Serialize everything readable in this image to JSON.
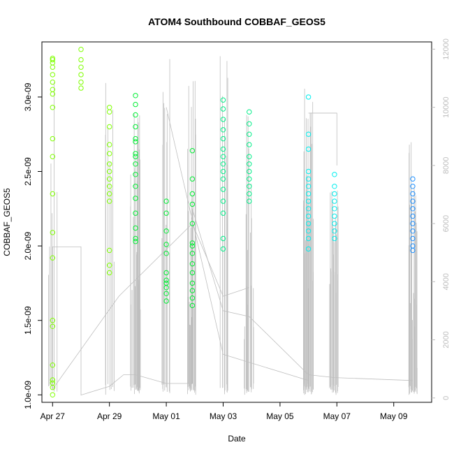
{
  "chart_data": {
    "type": "scatter",
    "title": "ATOM4 Southbound COBBAF_GEOS5",
    "xlabel": "Date",
    "ylabel": "COBBAF_GEOS5",
    "x_type": "date",
    "xlim": [
      "2017-04-26T15:00",
      "2017-05-10T08:00"
    ],
    "x_ticks": [
      {
        "label": "Apr 27",
        "date": "2017-04-27"
      },
      {
        "label": "Apr 29",
        "date": "2017-04-29"
      },
      {
        "label": "May 01",
        "date": "2017-05-01"
      },
      {
        "label": "May 03",
        "date": "2017-05-03"
      },
      {
        "label": "May 05",
        "date": "2017-05-05"
      },
      {
        "label": "May 07",
        "date": "2017-05-07"
      },
      {
        "label": "May 09",
        "date": "2017-05-09"
      }
    ],
    "ylim": [
      9.5e-10,
      3.37e-09
    ],
    "y_ticks": [
      {
        "label": "1.0e-09",
        "value": 1e-09
      },
      {
        "label": "1.5e-09",
        "value": 1.5e-09
      },
      {
        "label": "2.0e-09",
        "value": 2e-09
      },
      {
        "label": "2.5e-09",
        "value": 2.5e-09
      },
      {
        "label": "3.0e-09",
        "value": 3e-09
      }
    ],
    "y2lim": [
      -150,
      12250
    ],
    "y2_ticks": [
      "0",
      "2000",
      "4000",
      "6000",
      "8000",
      "10000",
      "12000"
    ],
    "grid": false,
    "legend": "none",
    "marker": "open circle",
    "colors": {
      "altitude_line": "#bebebe",
      "axis": "#000000",
      "right_axis": "#bdbdbd"
    },
    "series": [
      {
        "color": "#7fff00",
        "points": [
          [
            "2017-04-27T00:00",
            3.26e-09
          ],
          [
            "2017-04-27T00:00",
            3.23e-09
          ],
          [
            "2017-04-27T00:00",
            3.2e-09
          ],
          [
            "2017-04-27T00:00",
            3.15e-09
          ],
          [
            "2017-04-27T00:00",
            3.1e-09
          ],
          [
            "2017-04-27T00:00",
            3.05e-09
          ],
          [
            "2017-04-27T00:00",
            3.02e-09
          ],
          [
            "2017-04-27T00:00",
            2.93e-09
          ],
          [
            "2017-04-27T00:00",
            2.72e-09
          ],
          [
            "2017-04-27T00:00",
            2.6e-09
          ],
          [
            "2017-04-27T00:00",
            2.35e-09
          ],
          [
            "2017-04-27T00:00",
            2.09e-09
          ],
          [
            "2017-04-27T00:00",
            1.92e-09
          ],
          [
            "2017-04-27T00:00",
            1.5e-09
          ],
          [
            "2017-04-27T00:00",
            1.46e-09
          ],
          [
            "2017-04-27T00:00",
            1.2e-09
          ],
          [
            "2017-04-27T00:00",
            1.1e-09
          ],
          [
            "2017-04-27T00:00",
            1.05e-09
          ],
          [
            "2017-04-27T00:00",
            1e-09
          ],
          [
            "2017-04-27T00:00",
            1.08e-09
          ],
          [
            "2017-04-27T00:00",
            3.25e-09
          ],
          [
            "2017-04-28T00:00",
            3.32e-09
          ],
          [
            "2017-04-28T00:00",
            3.25e-09
          ],
          [
            "2017-04-28T00:00",
            3.2e-09
          ],
          [
            "2017-04-28T00:00",
            3.15e-09
          ],
          [
            "2017-04-28T00:00",
            3.1e-09
          ],
          [
            "2017-04-28T00:00",
            3.06e-09
          ],
          [
            "2017-04-29T00:00",
            2.93e-09
          ],
          [
            "2017-04-29T00:00",
            2.9e-09
          ],
          [
            "2017-04-29T00:00",
            2.8e-09
          ],
          [
            "2017-04-29T00:00",
            2.68e-09
          ],
          [
            "2017-04-29T00:00",
            2.62e-09
          ],
          [
            "2017-04-29T00:00",
            2.55e-09
          ],
          [
            "2017-04-29T00:00",
            2.5e-09
          ],
          [
            "2017-04-29T00:00",
            2.45e-09
          ],
          [
            "2017-04-29T00:00",
            2.4e-09
          ],
          [
            "2017-04-29T00:00",
            2.35e-09
          ],
          [
            "2017-04-29T00:00",
            2.3e-09
          ],
          [
            "2017-04-29T00:00",
            1.97e-09
          ],
          [
            "2017-04-29T00:00",
            1.87e-09
          ],
          [
            "2017-04-29T00:00",
            1.82e-09
          ]
        ]
      },
      {
        "color": "#00ee33",
        "points": [
          [
            "2017-04-29T22:00",
            3.01e-09
          ],
          [
            "2017-04-29T22:00",
            2.95e-09
          ],
          [
            "2017-04-29T22:00",
            2.88e-09
          ],
          [
            "2017-04-29T22:00",
            2.8e-09
          ],
          [
            "2017-04-29T22:00",
            2.72e-09
          ],
          [
            "2017-04-29T22:00",
            2.62e-09
          ],
          [
            "2017-04-29T22:00",
            2.55e-09
          ],
          [
            "2017-04-29T22:00",
            2.48e-09
          ],
          [
            "2017-04-29T22:00",
            2.4e-09
          ],
          [
            "2017-04-29T22:00",
            2.32e-09
          ],
          [
            "2017-04-29T22:00",
            2.22e-09
          ],
          [
            "2017-04-29T22:00",
            2.12e-09
          ],
          [
            "2017-04-29T22:00",
            2.05e-09
          ],
          [
            "2017-04-29T22:00",
            2.03e-09
          ],
          [
            "2017-04-29T22:00",
            2.6e-09
          ],
          [
            "2017-04-29T22:00",
            2.7e-09
          ],
          [
            "2017-05-01T00:00",
            2.3e-09
          ],
          [
            "2017-05-01T00:00",
            2.22e-09
          ],
          [
            "2017-05-01T00:00",
            2.1e-09
          ],
          [
            "2017-05-01T00:00",
            2.01e-09
          ],
          [
            "2017-05-01T00:00",
            1.95e-09
          ],
          [
            "2017-05-01T00:00",
            1.82e-09
          ],
          [
            "2017-05-01T00:00",
            1.77e-09
          ],
          [
            "2017-05-01T00:00",
            1.72e-09
          ],
          [
            "2017-05-01T00:00",
            1.68e-09
          ],
          [
            "2017-05-01T00:00",
            1.63e-09
          ],
          [
            "2017-05-01T00:00",
            1.75e-09
          ],
          [
            "2017-05-01T22:00",
            2.64e-09
          ],
          [
            "2017-05-01T22:00",
            2.35e-09
          ],
          [
            "2017-05-01T22:00",
            2.28e-09
          ],
          [
            "2017-05-01T22:00",
            2.15e-09
          ],
          [
            "2017-05-01T22:00",
            2.02e-09
          ],
          [
            "2017-05-01T22:00",
            1.95e-09
          ],
          [
            "2017-05-01T22:00",
            1.88e-09
          ],
          [
            "2017-05-01T22:00",
            1.82e-09
          ],
          [
            "2017-05-01T22:00",
            1.75e-09
          ],
          [
            "2017-05-01T22:00",
            1.7e-09
          ],
          [
            "2017-05-01T22:00",
            1.65e-09
          ],
          [
            "2017-05-01T22:00",
            1.6e-09
          ],
          [
            "2017-05-01T22:00",
            2e-09
          ],
          [
            "2017-05-01T22:00",
            2.45e-09
          ]
        ]
      },
      {
        "color": "#00ee88",
        "points": [
          [
            "2017-05-03T00:00",
            2.98e-09
          ],
          [
            "2017-05-03T00:00",
            2.92e-09
          ],
          [
            "2017-05-03T00:00",
            2.85e-09
          ],
          [
            "2017-05-03T00:00",
            2.78e-09
          ],
          [
            "2017-05-03T00:00",
            2.72e-09
          ],
          [
            "2017-05-03T00:00",
            2.65e-09
          ],
          [
            "2017-05-03T00:00",
            2.6e-09
          ],
          [
            "2017-05-03T00:00",
            2.55e-09
          ],
          [
            "2017-05-03T00:00",
            2.5e-09
          ],
          [
            "2017-05-03T00:00",
            2.45e-09
          ],
          [
            "2017-05-03T00:00",
            2.38e-09
          ],
          [
            "2017-05-03T00:00",
            2.3e-09
          ],
          [
            "2017-05-03T00:00",
            2.22e-09
          ],
          [
            "2017-05-03T00:00",
            2.05e-09
          ],
          [
            "2017-05-03T00:00",
            1.98e-09
          ],
          [
            "2017-05-03T22:00",
            2.9e-09
          ],
          [
            "2017-05-03T22:00",
            2.82e-09
          ],
          [
            "2017-05-03T22:00",
            2.75e-09
          ],
          [
            "2017-05-03T22:00",
            2.68e-09
          ],
          [
            "2017-05-03T22:00",
            2.6e-09
          ],
          [
            "2017-05-03T22:00",
            2.55e-09
          ],
          [
            "2017-05-03T22:00",
            2.5e-09
          ],
          [
            "2017-05-03T22:00",
            2.45e-09
          ],
          [
            "2017-05-03T22:00",
            2.4e-09
          ],
          [
            "2017-05-03T22:00",
            2.35e-09
          ],
          [
            "2017-05-03T22:00",
            2.3e-09
          ]
        ]
      },
      {
        "color": "#00eeee",
        "points": [
          [
            "2017-05-06T00:00",
            3e-09
          ],
          [
            "2017-05-06T00:00",
            2.75e-09
          ],
          [
            "2017-05-06T00:00",
            2.65e-09
          ],
          [
            "2017-05-06T00:00",
            2.5e-09
          ],
          [
            "2017-05-06T00:00",
            2.45e-09
          ],
          [
            "2017-05-06T00:00",
            2.4e-09
          ],
          [
            "2017-05-06T00:00",
            2.35e-09
          ],
          [
            "2017-05-06T00:00",
            2.3e-09
          ],
          [
            "2017-05-06T00:00",
            2.25e-09
          ],
          [
            "2017-05-06T00:00",
            2.2e-09
          ],
          [
            "2017-05-06T00:00",
            2.15e-09
          ],
          [
            "2017-05-06T00:00",
            2.1e-09
          ],
          [
            "2017-05-06T00:00",
            2.05e-09
          ],
          [
            "2017-05-06T00:00",
            1.98e-09
          ],
          [
            "2017-05-06T22:00",
            2.48e-09
          ],
          [
            "2017-05-06T22:00",
            2.4e-09
          ],
          [
            "2017-05-06T22:00",
            2.35e-09
          ],
          [
            "2017-05-06T22:00",
            2.3e-09
          ],
          [
            "2017-05-06T22:00",
            2.25e-09
          ],
          [
            "2017-05-06T22:00",
            2.2e-09
          ],
          [
            "2017-05-06T22:00",
            2.15e-09
          ],
          [
            "2017-05-06T22:00",
            2.1e-09
          ],
          [
            "2017-05-06T22:00",
            2.05e-09
          ]
        ]
      },
      {
        "color": "#1e90ff",
        "points": [
          [
            "2017-05-09T16:00",
            2.45e-09
          ],
          [
            "2017-05-09T16:00",
            2.4e-09
          ],
          [
            "2017-05-09T16:00",
            2.35e-09
          ],
          [
            "2017-05-09T16:00",
            2.3e-09
          ],
          [
            "2017-05-09T16:00",
            2.25e-09
          ],
          [
            "2017-05-09T16:00",
            2.2e-09
          ],
          [
            "2017-05-09T16:00",
            2.15e-09
          ],
          [
            "2017-05-09T16:00",
            2.1e-09
          ],
          [
            "2017-05-09T16:00",
            2.05e-09
          ],
          [
            "2017-05-09T16:00",
            2e-09
          ],
          [
            "2017-05-09T16:00",
            1.97e-09
          ]
        ]
      }
    ]
  }
}
